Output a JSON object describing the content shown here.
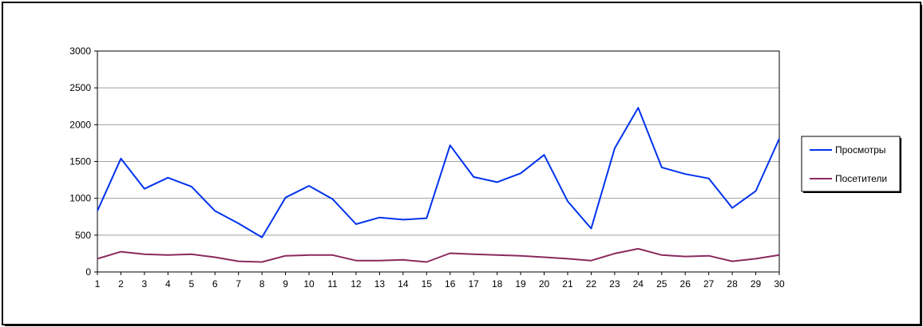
{
  "chart_data": {
    "type": "line",
    "title": "",
    "xlabel": "",
    "ylabel": "",
    "x": [
      1,
      2,
      3,
      4,
      5,
      6,
      7,
      8,
      9,
      10,
      11,
      12,
      13,
      14,
      15,
      16,
      17,
      18,
      19,
      20,
      21,
      22,
      23,
      24,
      25,
      26,
      27,
      28,
      29,
      30
    ],
    "ylim": [
      0,
      3000
    ],
    "yticks": [
      0,
      500,
      1000,
      1500,
      2000,
      2500,
      3000
    ],
    "grid": true,
    "legend_position": "right",
    "series": [
      {
        "name": "Просмотры",
        "color": "#0033ee",
        "values": [
          830,
          1540,
          1130,
          1280,
          1160,
          830,
          660,
          470,
          1010,
          1170,
          990,
          650,
          740,
          710,
          730,
          1720,
          1290,
          1220,
          1340,
          1590,
          960,
          590,
          1680,
          2230,
          1420,
          1330,
          1270,
          870,
          1100,
          1810
        ]
      },
      {
        "name": "Посетители",
        "color": "#8b2a5e",
        "values": [
          180,
          275,
          240,
          230,
          240,
          200,
          145,
          135,
          220,
          230,
          230,
          155,
          155,
          165,
          135,
          255,
          240,
          230,
          220,
          200,
          180,
          155,
          250,
          315,
          230,
          210,
          220,
          145,
          180,
          230
        ]
      }
    ]
  }
}
